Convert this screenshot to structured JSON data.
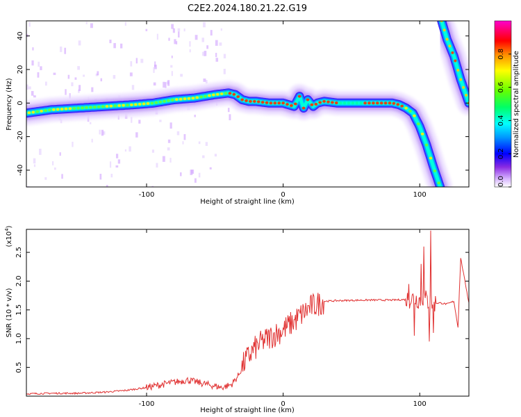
{
  "title": "C2E2.2024.180.21.22.G19",
  "colors": {
    "snr_line": "#e03030",
    "axis": "#000000",
    "colormap": [
      "#ffffff",
      "#cc99ff",
      "#8a2be2",
      "#0000ff",
      "#0099ff",
      "#00ffff",
      "#00ff66",
      "#66ff00",
      "#ffff00",
      "#ff8800",
      "#ff0000",
      "#ff00cc"
    ]
  },
  "chart_data": [
    {
      "type": "heatmap",
      "xlabel": "Height of straight line (km)",
      "ylabel": "Frequency (Hz)",
      "xlim": [
        -188,
        136
      ],
      "ylim": [
        -50,
        49
      ],
      "xticks": [
        -100,
        0,
        100
      ],
      "xtick_labels": [
        "-100",
        "0",
        "100"
      ],
      "yticks": [
        -40,
        -20,
        0,
        20,
        40
      ],
      "ytick_labels": [
        "-40",
        "-20",
        "0",
        "20",
        "40"
      ],
      "colorbar": {
        "label": "Normalized spectral amplitude",
        "lim": [
          0,
          1
        ],
        "ticks": [
          0.0,
          0.2,
          0.4,
          0.6,
          0.8
        ],
        "tick_labels": [
          "0.0",
          "0.2",
          "0.4",
          "0.6",
          "0.8"
        ]
      },
      "ridge": {
        "x": [
          -188,
          -170,
          -150,
          -130,
          -110,
          -95,
          -80,
          -65,
          -50,
          -40,
          -35,
          -30,
          -25,
          -20,
          -10,
          0,
          8,
          12,
          15,
          18,
          22,
          25,
          30,
          40,
          60,
          80,
          85,
          90,
          95,
          100,
          105,
          110,
          115
        ],
        "y": [
          -6,
          -4,
          -3,
          -2,
          -1,
          0,
          2,
          3,
          5,
          6,
          5,
          2,
          1,
          1,
          0,
          0,
          -2,
          4,
          -3,
          2,
          -2,
          0,
          1,
          0,
          0,
          0,
          -1,
          -3,
          -6,
          -14,
          -25,
          -38,
          -50
        ]
      },
      "ridge_right": {
        "x": [
          116,
          120,
          125,
          130,
          136
        ],
        "y": [
          49,
          38,
          28,
          14,
          0
        ]
      }
    },
    {
      "type": "line",
      "xlabel": "Height of straight line (km)",
      "ylabel": "SNR (10 * v/v)",
      "scale_label": "(x10",
      "scale_exp": "4",
      "scale_close": ")",
      "xlim": [
        -188,
        136
      ],
      "ylim": [
        0,
        2.9
      ],
      "xticks": [
        -100,
        0,
        100
      ],
      "xtick_labels": [
        "-100",
        "0",
        "100"
      ],
      "yticks": [
        0.5,
        1.0,
        1.5,
        2.0,
        2.5
      ],
      "ytick_labels": [
        "0.5",
        "1.0",
        "1.5",
        "2.0",
        "2.5"
      ],
      "series": [
        {
          "x": [
            -188,
            -170,
            -150,
            -130,
            -115,
            -100,
            -85,
            -70,
            -55,
            -45,
            -38,
            -33,
            -28,
            -22,
            -15,
            -8,
            0,
            8,
            15,
            20,
            25,
            30,
            40,
            60,
            80,
            90,
            95,
            100,
            103,
            106,
            110,
            115,
            120,
            125,
            128,
            130,
            136
          ],
          "y": [
            0.04,
            0.05,
            0.05,
            0.07,
            0.1,
            0.15,
            0.22,
            0.28,
            0.2,
            0.15,
            0.2,
            0.35,
            0.6,
            0.8,
            0.95,
            1.05,
            1.15,
            1.3,
            1.45,
            1.55,
            1.6,
            1.65,
            1.66,
            1.67,
            1.67,
            1.68,
            1.7,
            1.68,
            1.72,
            1.65,
            1.62,
            1.62,
            1.6,
            1.65,
            1.2,
            2.4,
            1.62
          ]
        }
      ]
    }
  ]
}
